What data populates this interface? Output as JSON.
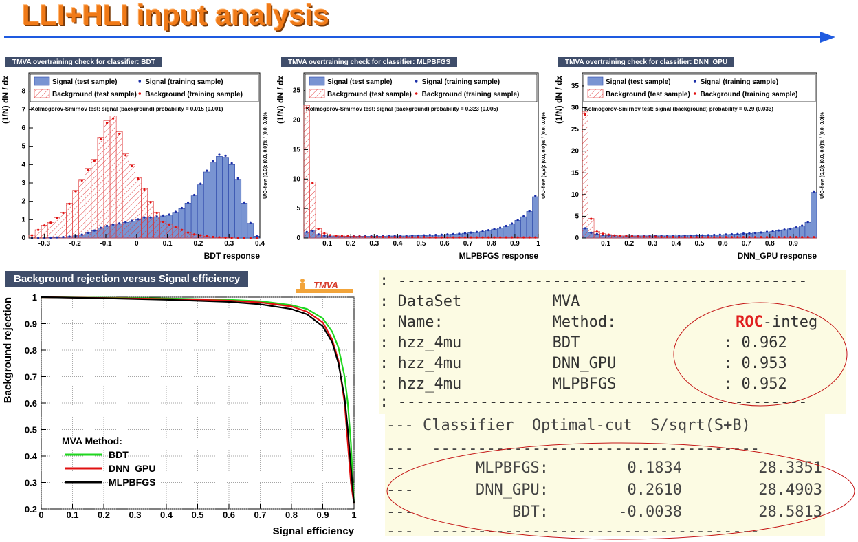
{
  "title": "LLI+HLI input analysis",
  "panels": {
    "bdt_label": "TMVA overtraining check for classifier: BDT",
    "mlp_label": "TMVA overtraining check for classifier: MLPBFGS",
    "dnn_label": "TMVA overtraining check for classifier: DNN_GPU",
    "roc_label": "Background rejection versus Signal efficiency",
    "tmva_logo": "TMVA"
  },
  "colors": {
    "signal_fill": "#7994d2",
    "signal_line": "#2a45a8",
    "background_hatch": "#e0393a",
    "bdt_curve": "#1fd71f",
    "dnn_curve": "#e01010",
    "mlp_curve": "#000000",
    "title_orange": "#f07a18",
    "arrow_blue": "#1e5ae0"
  },
  "chart_data": [
    {
      "type": "histogram",
      "id": "bdt",
      "xlabel": "BDT response",
      "ylabel": "(1/N) dN / dx",
      "xlim": [
        -0.35,
        0.4
      ],
      "ylim": [
        0,
        9
      ],
      "xticks": [
        "-0.3",
        "-0.2",
        "-0.1",
        "0",
        "0.1",
        "0.2",
        "0.3",
        "0.4"
      ],
      "yticks": [
        "0",
        "1",
        "2",
        "3",
        "4",
        "5",
        "6",
        "7",
        "8"
      ],
      "legend": [
        "Signal (test sample)",
        "Signal (training sample)",
        "Background (test sample)",
        "Background (training sample)"
      ],
      "ks_text": "Kolmogorov-Smirnov test: signal (background) probability = 0.015 (0.001)",
      "overflow_text": "U/O-flow (S,B): (0.0, 0.0)% / (0.0, 0.0)%",
      "bins": [
        -0.35,
        0.4,
        37
      ],
      "signal": [
        0,
        0,
        0,
        0.02,
        0.03,
        0.05,
        0.08,
        0.12,
        0.18,
        0.28,
        0.4,
        0.55,
        0.65,
        0.72,
        0.78,
        0.85,
        0.92,
        1.0,
        1.1,
        1.1,
        1.15,
        1.2,
        1.25,
        1.4,
        1.6,
        1.9,
        2.3,
        2.9,
        3.6,
        4.1,
        4.45,
        4.4,
        4.0,
        3.2,
        1.9,
        0.8,
        0.1
      ],
      "background": [
        0.15,
        0.45,
        0.7,
        0.85,
        1.1,
        1.4,
        1.9,
        2.6,
        3.2,
        3.8,
        4.3,
        5.5,
        6.4,
        6.65,
        5.8,
        4.6,
        4.0,
        3.3,
        2.7,
        2.0,
        1.4,
        0.9,
        0.75,
        0.6,
        0.45,
        0.3,
        0.2,
        0.15,
        0.1,
        0.06,
        0.04,
        0.02,
        0.01,
        0,
        0,
        0,
        0
      ]
    },
    {
      "type": "histogram",
      "id": "mlp",
      "xlabel": "MLPBFGS response",
      "ylabel": "(1/N) dN / dx",
      "xlim": [
        0,
        1
      ],
      "ylim": [
        0,
        28
      ],
      "xticks": [
        "0.1",
        "0.2",
        "0.3",
        "0.4",
        "0.5",
        "0.6",
        "0.7",
        "0.8",
        "0.9",
        "1"
      ],
      "yticks": [
        "0",
        "5",
        "10",
        "15",
        "20",
        "25"
      ],
      "legend": [
        "Signal (test sample)",
        "Signal (training sample)",
        "Background (test sample)",
        "Background (training sample)"
      ],
      "ks_text": "Kolmogorov-Smirnov test: signal (background) probability = 0.323 (0.005)",
      "overflow_text": "U/O-flow (S,B): (0.0, 0.0)% / (0.0, 0.0)%",
      "bins": [
        0,
        1,
        40
      ],
      "signal": [
        1.0,
        1.2,
        0.6,
        0.4,
        0.35,
        0.3,
        0.3,
        0.3,
        0.3,
        0.3,
        0.3,
        0.3,
        0.3,
        0.3,
        0.35,
        0.35,
        0.35,
        0.35,
        0.4,
        0.4,
        0.45,
        0.5,
        0.5,
        0.55,
        0.6,
        0.65,
        0.7,
        0.8,
        0.9,
        1.0,
        1.1,
        1.3,
        1.5,
        1.7,
        2.0,
        2.4,
        3.0,
        3.6,
        4.5,
        7.0
      ],
      "background": [
        22.5,
        9.5,
        1.6,
        0.8,
        0.5,
        0.4,
        0.35,
        0.3,
        0.25,
        0.25,
        0.2,
        0.2,
        0.2,
        0.2,
        0.15,
        0.15,
        0.15,
        0.15,
        0.15,
        0.15,
        0.15,
        0.1,
        0.1,
        0.1,
        0.1,
        0.1,
        0.1,
        0.1,
        0.1,
        0.1,
        0.1,
        0.1,
        0.1,
        0.1,
        0.1,
        0.1,
        0.1,
        0.1,
        0.1,
        0.1
      ]
    },
    {
      "type": "histogram",
      "id": "dnn",
      "xlabel": "DNN_GPU response",
      "ylabel": "(1/N) dN / dx",
      "xlim": [
        0,
        1
      ],
      "ylim": [
        0,
        38
      ],
      "xticks": [
        "0.1",
        "0.2",
        "0.3",
        "0.4",
        "0.5",
        "0.6",
        "0.7",
        "0.8",
        "0.9"
      ],
      "yticks": [
        "0",
        "5",
        "10",
        "15",
        "20",
        "25",
        "30",
        "35"
      ],
      "legend": [
        "Signal (test sample)",
        "Signal (training sample)",
        "Background (test sample)",
        "Background (training sample)"
      ],
      "ks_text": "Kolmogorov-Smirnov test: signal (background) probability =  0.29 (0.033)",
      "overflow_text": "U/O-flow (S,B): (0.0, 0.0)% / (0.0, 0.0)%",
      "bins": [
        0,
        1,
        40
      ],
      "signal": [
        2.2,
        1.2,
        0.9,
        0.7,
        0.6,
        0.55,
        0.5,
        0.5,
        0.5,
        0.5,
        0.5,
        0.5,
        0.5,
        0.5,
        0.5,
        0.5,
        0.5,
        0.55,
        0.55,
        0.6,
        0.6,
        0.65,
        0.7,
        0.75,
        0.8,
        0.85,
        0.9,
        1.0,
        1.05,
        1.15,
        1.25,
        1.4,
        1.5,
        1.7,
        1.9,
        2.1,
        2.4,
        2.8,
        3.6,
        10.5
      ],
      "background": [
        29,
        4.5,
        1.5,
        1.0,
        0.8,
        0.6,
        0.5,
        0.45,
        0.4,
        0.35,
        0.3,
        0.3,
        0.3,
        0.25,
        0.25,
        0.25,
        0.2,
        0.2,
        0.2,
        0.2,
        0.2,
        0.2,
        0.2,
        0.2,
        0.2,
        0.2,
        0.2,
        0.2,
        0.2,
        0.2,
        0.2,
        0.2,
        0.2,
        0.2,
        0.2,
        0.2,
        0.2,
        0.2,
        0.2,
        0.2
      ]
    },
    {
      "type": "line",
      "id": "roc",
      "xlabel": "Signal efficiency",
      "ylabel": "Background rejection",
      "xlim": [
        0,
        1
      ],
      "ylim": [
        0.2,
        1
      ],
      "xticks": [
        "0",
        "0.1",
        "0.2",
        "0.3",
        "0.4",
        "0.5",
        "0.6",
        "0.7",
        "0.8",
        "0.9",
        "1"
      ],
      "yticks": [
        "0.2",
        "0.3",
        "0.4",
        "0.5",
        "0.6",
        "0.7",
        "0.8",
        "0.9",
        "1"
      ],
      "legend_title": "MVA Method:",
      "series": [
        {
          "name": "BDT",
          "x": [
            0,
            0.2,
            0.4,
            0.6,
            0.7,
            0.8,
            0.85,
            0.9,
            0.93,
            0.95,
            0.97,
            0.98,
            0.99,
            1.0
          ],
          "y": [
            1.0,
            0.998,
            0.995,
            0.99,
            0.985,
            0.97,
            0.955,
            0.92,
            0.87,
            0.81,
            0.7,
            0.6,
            0.45,
            0.22
          ]
        },
        {
          "name": "DNN_GPU",
          "x": [
            0,
            0.2,
            0.4,
            0.6,
            0.7,
            0.8,
            0.85,
            0.9,
            0.93,
            0.95,
            0.97,
            0.98,
            0.99,
            1.0
          ],
          "y": [
            1.0,
            0.997,
            0.993,
            0.987,
            0.98,
            0.965,
            0.945,
            0.905,
            0.84,
            0.76,
            0.6,
            0.45,
            0.3,
            0.22
          ]
        },
        {
          "name": "MLPBFGS",
          "x": [
            0,
            0.2,
            0.4,
            0.6,
            0.7,
            0.8,
            0.85,
            0.9,
            0.93,
            0.95,
            0.97,
            0.98,
            0.99,
            1.0
          ],
          "y": [
            1.0,
            0.996,
            0.99,
            0.982,
            0.973,
            0.955,
            0.935,
            0.89,
            0.83,
            0.75,
            0.62,
            0.5,
            0.36,
            0.22
          ]
        }
      ]
    },
    {
      "type": "table",
      "id": "roc_integral",
      "lines": [
        ": ---------------------------------------------",
        ": DataSet          MVA",
        ": Name:            Method:",
        ": hzz_4mu          BDT",
        ": hzz_4mu          DNN_GPU",
        ": hzz_4mu          MLPBFGS",
        ": ---------------------------------------------"
      ],
      "roc_keyword": "ROC",
      "roc_suffix": "-integ",
      "values": [
        ": 0.962",
        ": 0.953",
        ": 0.952"
      ]
    },
    {
      "type": "table",
      "id": "optimal_cut",
      "header": "--- Classifier  Optimal-cut  S/sqrt(S+B)",
      "separator": "---  ------------------------------------",
      "rows": [
        {
          "prefix": "--",
          "classifier": "MLPBFGS:",
          "cut": "0.1834",
          "sig": "28.3351"
        },
        {
          "prefix": "---",
          "classifier": "DNN_GPU:",
          "cut": "0.2610",
          "sig": "28.4903"
        },
        {
          "prefix": "---",
          "classifier": "BDT:",
          "cut": "-0.0038",
          "sig": "28.5813"
        }
      ],
      "footer": "---  ------------------------------------"
    }
  ]
}
